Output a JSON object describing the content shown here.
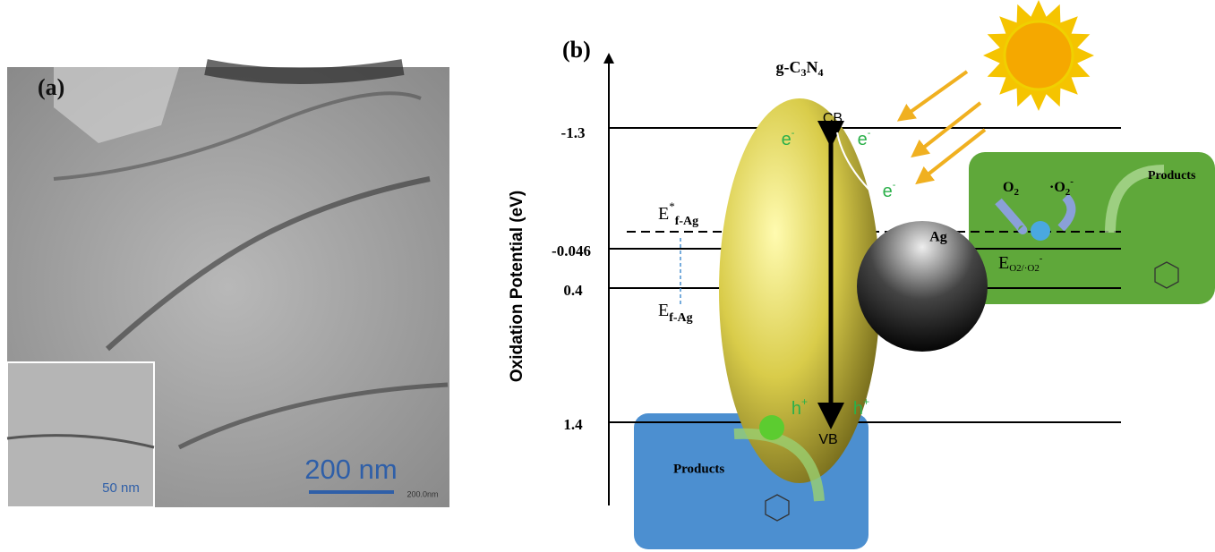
{
  "panel_a": {
    "label": "(a)",
    "scale_bar": "200 nm",
    "scale_bar_small": "200.0nm",
    "inset_scale_bar": "50 nm"
  },
  "panel_b": {
    "label": "(b)",
    "y_axis_label": "Oxidation Potential (eV)",
    "levels": [
      "-1.3",
      "-0.046",
      "0.4",
      "1.4"
    ],
    "semiconductor": {
      "base": "g-C",
      "sub1": "3",
      "mid": "N",
      "sub2": "4"
    },
    "conduction_band": "CB",
    "valence_band": "VB",
    "electrons": [
      {
        "base": "e",
        "sup": "-"
      },
      {
        "base": "e",
        "sup": "-"
      },
      {
        "base": "e",
        "sup": "-"
      }
    ],
    "holes": [
      {
        "base": "h",
        "sup": "+"
      },
      {
        "base": "h",
        "sup": "+"
      }
    ],
    "excited_fermi": {
      "base": "E",
      "sup": "*",
      "sub": "f-Ag"
    },
    "fermi": {
      "base": "E",
      "sub": "f-Ag"
    },
    "metal": "Ag",
    "oxygen": {
      "base": "O",
      "sub": "2"
    },
    "superoxide": {
      "base": "·O",
      "sub": "2",
      "sup": "-"
    },
    "redox_potential": {
      "base": "E",
      "sub": "O2/·O2",
      "sup": "-"
    },
    "products_oxidation": "Products",
    "products_reduction": "Products"
  }
}
